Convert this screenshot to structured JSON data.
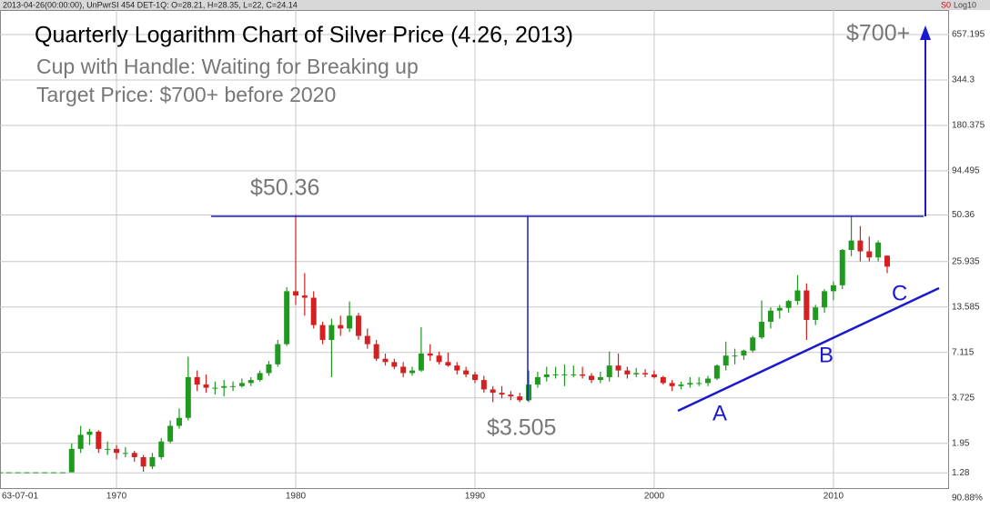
{
  "chart_data": {
    "type": "candlestick",
    "header": "2013-04-26(00:00:00), UnPwrSI 454 DET-1Q:  O=28.21, H=28.35, L=22, C=24.14",
    "series_flag": "S0",
    "scale_label": "Log10",
    "bottom_right_label": "90.88%",
    "title": "Quarterly Logarithm Chart of Silver Price (4.26, 2013)",
    "subtitle_lines": [
      "Cup with Handle: Waiting for Breaking up",
      "Target Price: $700+ before 2020"
    ],
    "annotations": {
      "peak": "$50.36",
      "bottom": "$3.505",
      "target": "$700+",
      "a": "A",
      "b": "B",
      "c": "C"
    },
    "log_scale": true,
    "grid": true,
    "up_color": "#1f9a1f",
    "down_color": "#d42020",
    "xlim": [
      1963.5,
      2016.3
    ],
    "xticks": [
      {
        "value": 1963.5,
        "label": "63-07-01"
      },
      1970,
      1980,
      1990,
      2000,
      2010
    ],
    "ylim": [
      1.03,
      945
    ],
    "yticks": [
      1.28,
      1.95,
      3.725,
      7.115,
      13.585,
      25.935,
      50.36,
      94.495,
      180.375,
      344.3,
      657.195
    ],
    "candles": [
      {
        "x": 1963.5,
        "o": 1.29,
        "h": 1.29,
        "l": 1.29,
        "c": 1.29
      },
      {
        "x": 1964,
        "o": 1.29,
        "h": 1.29,
        "l": 1.29,
        "c": 1.29
      },
      {
        "x": 1964.5,
        "o": 1.29,
        "h": 1.29,
        "l": 1.29,
        "c": 1.29
      },
      {
        "x": 1965,
        "o": 1.29,
        "h": 1.29,
        "l": 1.29,
        "c": 1.29
      },
      {
        "x": 1965.5,
        "o": 1.29,
        "h": 1.29,
        "l": 1.29,
        "c": 1.29
      },
      {
        "x": 1966,
        "o": 1.29,
        "h": 1.29,
        "l": 1.29,
        "c": 1.29
      },
      {
        "x": 1966.5,
        "o": 1.29,
        "h": 1.29,
        "l": 1.29,
        "c": 1.29
      },
      {
        "x": 1967,
        "o": 1.29,
        "h": 1.29,
        "l": 1.29,
        "c": 1.29
      },
      {
        "x": 1967.5,
        "o": 1.29,
        "h": 1.95,
        "l": 1.29,
        "c": 1.8
      },
      {
        "x": 1968,
        "o": 1.8,
        "h": 2.5,
        "l": 1.7,
        "c": 2.2
      },
      {
        "x": 1968.5,
        "o": 2.2,
        "h": 2.4,
        "l": 1.9,
        "c": 2.3
      },
      {
        "x": 1969,
        "o": 2.3,
        "h": 2.35,
        "l": 1.7,
        "c": 1.8
      },
      {
        "x": 1969.5,
        "o": 1.8,
        "h": 2.0,
        "l": 1.65,
        "c": 1.8
      },
      {
        "x": 1970,
        "o": 1.8,
        "h": 1.9,
        "l": 1.55,
        "c": 1.7
      },
      {
        "x": 1970.5,
        "o": 1.7,
        "h": 1.85,
        "l": 1.6,
        "c": 1.7
      },
      {
        "x": 1971,
        "o": 1.7,
        "h": 1.75,
        "l": 1.5,
        "c": 1.6
      },
      {
        "x": 1971.5,
        "o": 1.6,
        "h": 1.65,
        "l": 1.3,
        "c": 1.4
      },
      {
        "x": 1972,
        "o": 1.4,
        "h": 1.7,
        "l": 1.35,
        "c": 1.6
      },
      {
        "x": 1972.5,
        "o": 1.6,
        "h": 2.1,
        "l": 1.55,
        "c": 2.0
      },
      {
        "x": 1973,
        "o": 2.0,
        "h": 2.7,
        "l": 1.95,
        "c": 2.5
      },
      {
        "x": 1973.5,
        "o": 2.5,
        "h": 3.2,
        "l": 2.4,
        "c": 2.8
      },
      {
        "x": 1974,
        "o": 2.8,
        "h": 6.7,
        "l": 2.7,
        "c": 5.0
      },
      {
        "x": 1974.5,
        "o": 5.0,
        "h": 5.5,
        "l": 4.1,
        "c": 4.5
      },
      {
        "x": 1975,
        "o": 4.5,
        "h": 5.2,
        "l": 4.0,
        "c": 4.3
      },
      {
        "x": 1975.5,
        "o": 4.3,
        "h": 4.7,
        "l": 3.9,
        "c": 4.3
      },
      {
        "x": 1976,
        "o": 4.3,
        "h": 4.8,
        "l": 3.8,
        "c": 4.4
      },
      {
        "x": 1976.5,
        "o": 4.4,
        "h": 4.7,
        "l": 4.1,
        "c": 4.4
      },
      {
        "x": 1977,
        "o": 4.4,
        "h": 4.9,
        "l": 4.3,
        "c": 4.6
      },
      {
        "x": 1977.5,
        "o": 4.6,
        "h": 5.0,
        "l": 4.4,
        "c": 4.8
      },
      {
        "x": 1978,
        "o": 4.8,
        "h": 5.5,
        "l": 4.7,
        "c": 5.3
      },
      {
        "x": 1978.5,
        "o": 5.3,
        "h": 6.3,
        "l": 5.1,
        "c": 6.0
      },
      {
        "x": 1979,
        "o": 6.0,
        "h": 8.5,
        "l": 5.8,
        "c": 8.0
      },
      {
        "x": 1979.5,
        "o": 8.0,
        "h": 18,
        "l": 7.8,
        "c": 17
      },
      {
        "x": 1980,
        "o": 17,
        "h": 50.36,
        "l": 14,
        "c": 16
      },
      {
        "x": 1980.5,
        "o": 16,
        "h": 22,
        "l": 12,
        "c": 15.5
      },
      {
        "x": 1981,
        "o": 15.5,
        "h": 17,
        "l": 10,
        "c": 10.5
      },
      {
        "x": 1981.5,
        "o": 10.5,
        "h": 11,
        "l": 8,
        "c": 8.5
      },
      {
        "x": 1982,
        "o": 8.5,
        "h": 11.5,
        "l": 5,
        "c": 10.5
      },
      {
        "x": 1982.5,
        "o": 10.5,
        "h": 12,
        "l": 9,
        "c": 10
      },
      {
        "x": 1983,
        "o": 10,
        "h": 14.7,
        "l": 9.5,
        "c": 12
      },
      {
        "x": 1983.5,
        "o": 12,
        "h": 12.5,
        "l": 8.5,
        "c": 9
      },
      {
        "x": 1984,
        "o": 9,
        "h": 10,
        "l": 7.5,
        "c": 8
      },
      {
        "x": 1984.5,
        "o": 8,
        "h": 8.5,
        "l": 6.3,
        "c": 6.5
      },
      {
        "x": 1985,
        "o": 6.5,
        "h": 7,
        "l": 5.9,
        "c": 6.2
      },
      {
        "x": 1985.5,
        "o": 6.2,
        "h": 6.5,
        "l": 5.6,
        "c": 5.8
      },
      {
        "x": 1986,
        "o": 5.8,
        "h": 6.2,
        "l": 5.0,
        "c": 5.3
      },
      {
        "x": 1986.5,
        "o": 5.3,
        "h": 5.8,
        "l": 5.1,
        "c": 5.5
      },
      {
        "x": 1987,
        "o": 5.5,
        "h": 10.2,
        "l": 5.4,
        "c": 7.0
      },
      {
        "x": 1987.5,
        "o": 7.0,
        "h": 8.0,
        "l": 6.3,
        "c": 6.8
      },
      {
        "x": 1988,
        "o": 6.8,
        "h": 7.2,
        "l": 6.0,
        "c": 6.2
      },
      {
        "x": 1988.5,
        "o": 6.2,
        "h": 7.1,
        "l": 5.8,
        "c": 5.9
      },
      {
        "x": 1989,
        "o": 5.9,
        "h": 6.2,
        "l": 5.2,
        "c": 5.5
      },
      {
        "x": 1989.5,
        "o": 5.5,
        "h": 5.8,
        "l": 5.0,
        "c": 5.2
      },
      {
        "x": 1990,
        "o": 5.2,
        "h": 5.4,
        "l": 4.6,
        "c": 4.8
      },
      {
        "x": 1990.5,
        "o": 4.8,
        "h": 5.1,
        "l": 4.0,
        "c": 4.2
      },
      {
        "x": 1991,
        "o": 4.2,
        "h": 4.4,
        "l": 3.5,
        "c": 4.0
      },
      {
        "x": 1991.5,
        "o": 4.0,
        "h": 4.4,
        "l": 3.7,
        "c": 3.9
      },
      {
        "x": 1992,
        "o": 3.9,
        "h": 4.1,
        "l": 3.6,
        "c": 3.8
      },
      {
        "x": 1992.5,
        "o": 3.8,
        "h": 4.0,
        "l": 3.505,
        "c": 3.6
      },
      {
        "x": 1993,
        "o": 3.6,
        "h": 5.5,
        "l": 3.5,
        "c": 4.5
      },
      {
        "x": 1993.5,
        "o": 4.5,
        "h": 5.4,
        "l": 4.3,
        "c": 5.0
      },
      {
        "x": 1994,
        "o": 5.0,
        "h": 5.8,
        "l": 4.7,
        "c": 5.2
      },
      {
        "x": 1994.5,
        "o": 5.2,
        "h": 5.8,
        "l": 4.9,
        "c": 5.2
      },
      {
        "x": 1995,
        "o": 5.2,
        "h": 6.0,
        "l": 4.4,
        "c": 5.2
      },
      {
        "x": 1995.5,
        "o": 5.2,
        "h": 5.9,
        "l": 5.0,
        "c": 5.2
      },
      {
        "x": 1996,
        "o": 5.2,
        "h": 5.8,
        "l": 4.9,
        "c": 5.1
      },
      {
        "x": 1996.5,
        "o": 5.1,
        "h": 5.3,
        "l": 4.6,
        "c": 4.8
      },
      {
        "x": 1997,
        "o": 4.8,
        "h": 5.4,
        "l": 4.6,
        "c": 5.0
      },
      {
        "x": 1997.5,
        "o": 5.0,
        "h": 7.2,
        "l": 4.7,
        "c": 5.9
      },
      {
        "x": 1998,
        "o": 5.9,
        "h": 7.0,
        "l": 5.0,
        "c": 5.5
      },
      {
        "x": 1998.5,
        "o": 5.5,
        "h": 5.8,
        "l": 4.9,
        "c": 5.2
      },
      {
        "x": 1999,
        "o": 5.2,
        "h": 5.7,
        "l": 5.0,
        "c": 5.3
      },
      {
        "x": 1999.5,
        "o": 5.3,
        "h": 5.6,
        "l": 5.0,
        "c": 5.2
      },
      {
        "x": 2000,
        "o": 5.2,
        "h": 5.5,
        "l": 4.9,
        "c": 5.0
      },
      {
        "x": 2000.5,
        "o": 5.0,
        "h": 5.1,
        "l": 4.5,
        "c": 4.6
      },
      {
        "x": 2001,
        "o": 4.6,
        "h": 4.8,
        "l": 4.1,
        "c": 4.4
      },
      {
        "x": 2001.5,
        "o": 4.4,
        "h": 4.7,
        "l": 4.2,
        "c": 4.5
      },
      {
        "x": 2002,
        "o": 4.5,
        "h": 5.0,
        "l": 4.3,
        "c": 4.6
      },
      {
        "x": 2002.5,
        "o": 4.6,
        "h": 5.0,
        "l": 4.4,
        "c": 4.6
      },
      {
        "x": 2003,
        "o": 4.6,
        "h": 5.1,
        "l": 4.4,
        "c": 4.9
      },
      {
        "x": 2003.5,
        "o": 4.9,
        "h": 6.0,
        "l": 4.8,
        "c": 5.9
      },
      {
        "x": 2004,
        "o": 5.9,
        "h": 8.3,
        "l": 5.5,
        "c": 6.8
      },
      {
        "x": 2004.5,
        "o": 6.8,
        "h": 7.5,
        "l": 6.0,
        "c": 6.8
      },
      {
        "x": 2005,
        "o": 6.8,
        "h": 7.4,
        "l": 6.4,
        "c": 7.3
      },
      {
        "x": 2005.5,
        "o": 7.3,
        "h": 9.0,
        "l": 7.1,
        "c": 8.8
      },
      {
        "x": 2006,
        "o": 8.8,
        "h": 14.9,
        "l": 8.6,
        "c": 11
      },
      {
        "x": 2006.5,
        "o": 11,
        "h": 13.5,
        "l": 10,
        "c": 12.9
      },
      {
        "x": 2007,
        "o": 12.9,
        "h": 14,
        "l": 11.5,
        "c": 13.4
      },
      {
        "x": 2007.5,
        "o": 13.4,
        "h": 15,
        "l": 12.5,
        "c": 14.8
      },
      {
        "x": 2008,
        "o": 14.8,
        "h": 21.4,
        "l": 14,
        "c": 17.2
      },
      {
        "x": 2008.5,
        "o": 17.2,
        "h": 19,
        "l": 8.5,
        "c": 11.3
      },
      {
        "x": 2009,
        "o": 11.3,
        "h": 14,
        "l": 10.5,
        "c": 13.5
      },
      {
        "x": 2009.5,
        "o": 13.5,
        "h": 17.5,
        "l": 12.5,
        "c": 17
      },
      {
        "x": 2010,
        "o": 17,
        "h": 19.5,
        "l": 15,
        "c": 18.5
      },
      {
        "x": 2010.5,
        "o": 18.5,
        "h": 31,
        "l": 17.5,
        "c": 30.6
      },
      {
        "x": 2011,
        "o": 30.6,
        "h": 49.8,
        "l": 28,
        "c": 35
      },
      {
        "x": 2011.5,
        "o": 35,
        "h": 43,
        "l": 26,
        "c": 30
      },
      {
        "x": 2012,
        "o": 30,
        "h": 37,
        "l": 26,
        "c": 27.5
      },
      {
        "x": 2012.5,
        "o": 27.5,
        "h": 35,
        "l": 26,
        "c": 34
      },
      {
        "x": 2013,
        "o": 28.21,
        "h": 28.35,
        "l": 22,
        "c": 24.14
      }
    ]
  }
}
